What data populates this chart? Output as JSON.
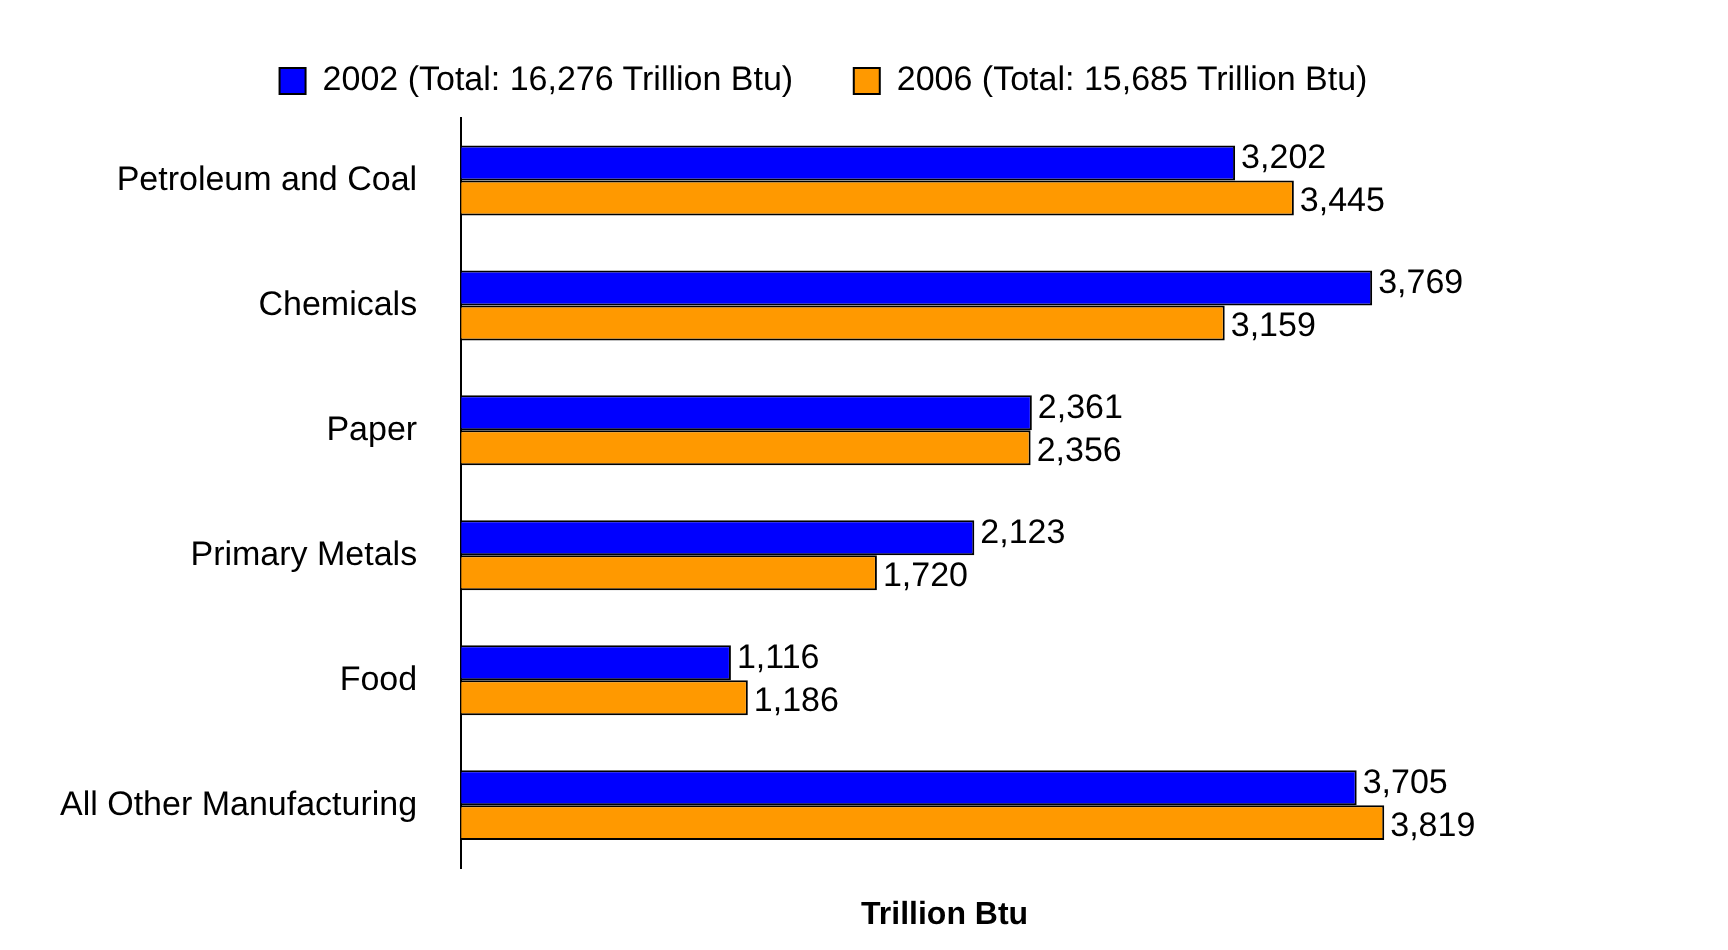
{
  "chart_data": {
    "type": "bar",
    "orientation": "horizontal",
    "xlabel": "Trillion Btu",
    "categories": [
      "Petroleum and Coal",
      "Chemicals",
      "Paper",
      "Primary Metals",
      "Food",
      "All Other Manufacturing"
    ],
    "series": [
      {
        "name": "2002 (Total: 16,276 Trillion Btu)",
        "color": "#0000ff",
        "values": [
          3202,
          3769,
          2361,
          2123,
          1116,
          3705
        ],
        "value_labels": [
          "3,202",
          "3,769",
          "2,361",
          "2,123",
          "1,116",
          "3,705"
        ]
      },
      {
        "name": "2006 (Total: 15,685 Trillion Btu)",
        "color": "#ff9900",
        "values": [
          3445,
          3159,
          2356,
          1720,
          1186,
          3819
        ],
        "value_labels": [
          "3,445",
          "3,159",
          "2,356",
          "1,720",
          "1,186",
          "3,819"
        ]
      }
    ],
    "legend": "top",
    "grid": false
  }
}
